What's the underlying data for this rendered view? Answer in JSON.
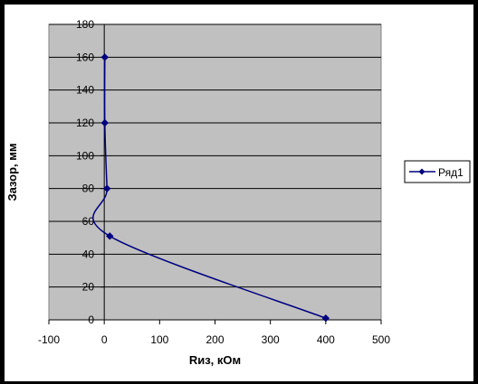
{
  "chart_data": {
    "type": "line",
    "title": "",
    "xlabel": "Rиз, кОм",
    "ylabel": "Зазор, мм",
    "xlim": [
      -100,
      500
    ],
    "ylim": [
      0,
      180
    ],
    "x_ticks": [
      -100,
      0,
      100,
      200,
      300,
      400,
      500
    ],
    "y_ticks": [
      0,
      20,
      40,
      60,
      80,
      100,
      120,
      140,
      160,
      180
    ],
    "grid": "horizontal",
    "legend_position": "right",
    "plot_background": "#c0c0c0",
    "series": [
      {
        "name": "Ряд1",
        "color": "#000080",
        "marker": "diamond",
        "smooth": true,
        "points": [
          {
            "x": 400,
            "y": 1
          },
          {
            "x": 10,
            "y": 51
          },
          {
            "x": 5,
            "y": 80
          },
          {
            "x": 1,
            "y": 120
          },
          {
            "x": 1,
            "y": 160
          }
        ]
      }
    ]
  }
}
